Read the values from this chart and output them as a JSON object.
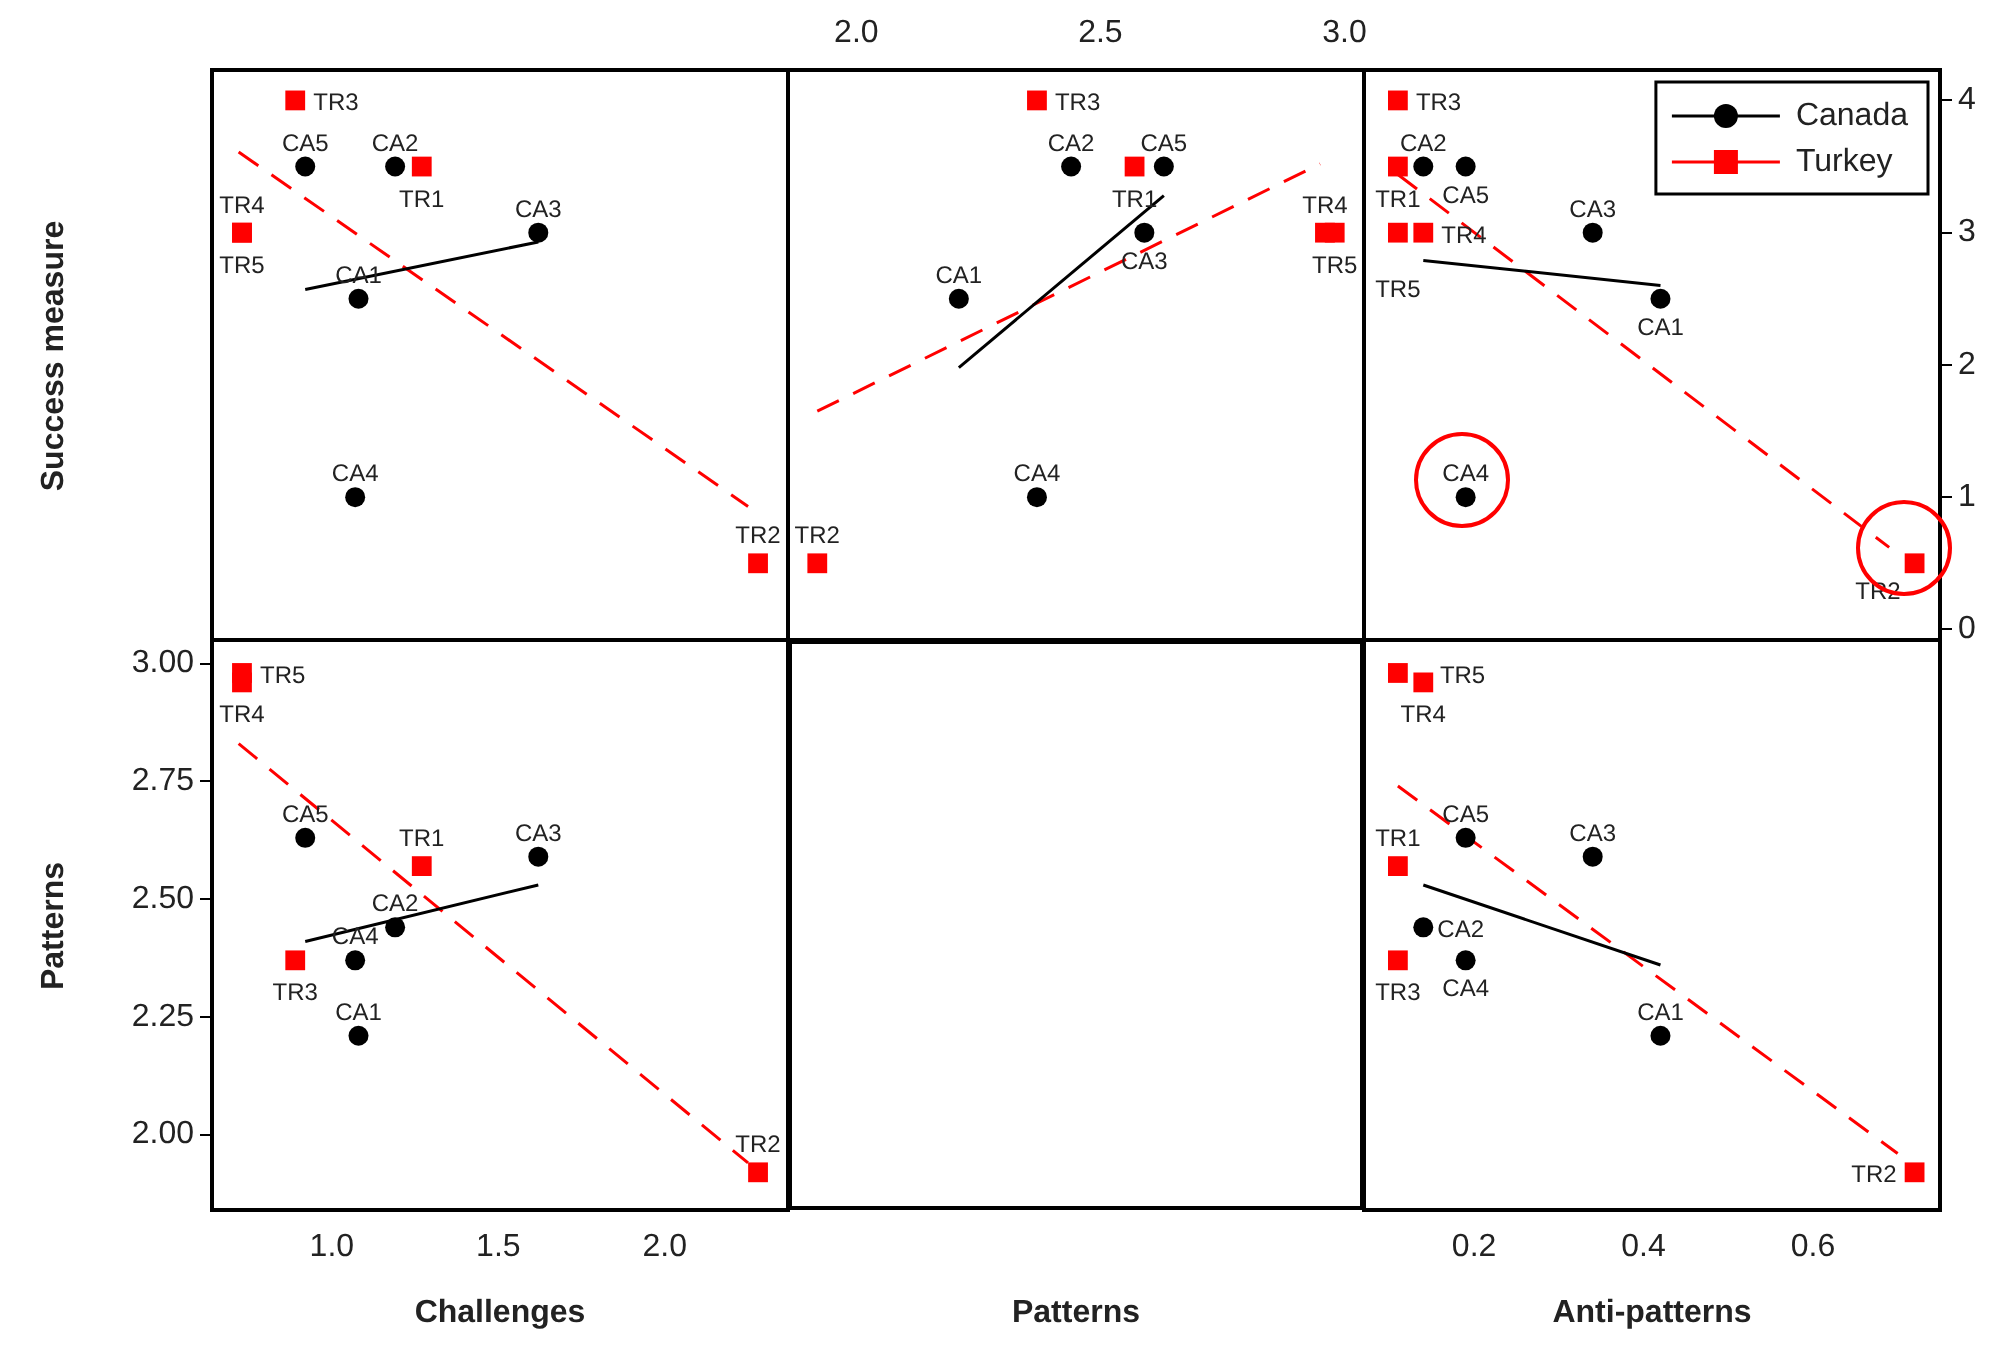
{
  "chart_data": [
    {
      "type": "scatter",
      "ylabel": "Success measure",
      "tick_labels": false,
      "xlim": [
        0.64,
        2.37
      ],
      "y2lim": [
        -0.08,
        4.23
      ],
      "series": [
        {
          "color": "#000000",
          "marker": "circle",
          "axis": "y2",
          "x": [
            1.08,
            1.19,
            1.62,
            1.07,
            0.92
          ],
          "values": [
            2.5,
            3.5,
            3.0,
            1.0,
            3.5
          ],
          "value_labels": [
            "CA1",
            "CA2",
            "CA3",
            "CA4",
            "CA5"
          ]
        },
        {
          "color": "#ff0000",
          "marker": "square",
          "axis": "y2",
          "x": [
            1.27,
            2.28,
            0.89,
            0.73,
            0.73
          ],
          "values": [
            3.5,
            0.5,
            4.0,
            3.0,
            3.0
          ],
          "value_labels": [
            "TR1",
            "TR2",
            "TR3",
            "TR4",
            "TR5"
          ]
        },
        {
          "type": "line",
          "color": "#000000",
          "marker": "none",
          "line_style": "solid",
          "axis": "y2",
          "x": [
            0.92,
            1.62
          ],
          "values": [
            2.57,
            2.93
          ]
        },
        {
          "type": "line",
          "color": "#ff0000",
          "marker": "none",
          "line_style": "dashed",
          "axis": "y2",
          "x": [
            0.72,
            2.25
          ],
          "values": [
            3.61,
            0.93
          ]
        }
      ]
    },
    {
      "type": "scatter",
      "xlabel": "Patterns",
      "tick_labels": "x",
      "xlim": [
        1.86,
        3.04
      ],
      "xticks": [
        {
          "value": 2,
          "label": "2.0"
        },
        {
          "value": 2.5,
          "label": "2.5"
        },
        {
          "value": 3,
          "label": "3.0"
        }
      ],
      "y2lim": [
        -0.08,
        4.23
      ],
      "series": [
        {
          "color": "#000000",
          "marker": "circle",
          "axis": "y2",
          "x": [
            2.21,
            2.44,
            2.59,
            2.37,
            2.63
          ],
          "values": [
            2.5,
            3.5,
            3.0,
            1.0,
            3.5
          ],
          "value_labels": [
            "CA1",
            "CA2",
            "CA3",
            "CA4",
            "CA5"
          ]
        },
        {
          "color": "#ff0000",
          "marker": "square",
          "axis": "y2",
          "x": [
            2.57,
            1.92,
            2.37,
            2.96,
            2.98
          ],
          "values": [
            3.5,
            0.5,
            4.0,
            3.0,
            3.0
          ],
          "value_labels": [
            "TR1",
            "TR2",
            "TR3",
            "TR4",
            "TR5"
          ]
        },
        {
          "type": "line",
          "color": "#000000",
          "marker": "none",
          "line_style": "solid",
          "axis": "y2",
          "x": [
            2.21,
            2.63
          ],
          "values": [
            1.98,
            3.28
          ]
        },
        {
          "type": "line",
          "color": "#ff0000",
          "marker": "none",
          "line_style": "dashed",
          "axis": "y2",
          "x": [
            1.92,
            2.95
          ],
          "values": [
            1.65,
            3.52
          ]
        }
      ]
    },
    {
      "type": "scatter",
      "tick_labels": "y",
      "legend": "top right",
      "xlim": [
        0.07,
        0.75
      ],
      "y2lim": [
        -0.08,
        4.23
      ],
      "y2ticks": [
        0,
        1,
        2,
        3,
        4
      ],
      "series": [
        {
          "name": "Canada",
          "color": "#000000",
          "marker": "circle",
          "axis": "y2",
          "x": [
            0.42,
            0.14,
            0.34,
            0.19,
            0.19
          ],
          "values": [
            2.5,
            3.5,
            3.0,
            1.0,
            3.5
          ],
          "value_labels": [
            "CA1",
            "CA2",
            "CA3",
            "CA4",
            "CA5"
          ]
        },
        {
          "name": "Turkey",
          "color": "#ff0000",
          "marker": "square",
          "axis": "y2",
          "x": [
            0.11,
            0.72,
            0.11,
            0.14,
            0.11
          ],
          "values": [
            3.5,
            0.5,
            4.0,
            3.0,
            3.0
          ],
          "value_labels": [
            "TR1",
            "TR2",
            "TR3",
            "TR4",
            "TR5"
          ]
        },
        {
          "type": "line",
          "color": "#000000",
          "marker": "none",
          "line_style": "solid",
          "axis": "y2",
          "x": [
            0.14,
            0.42
          ],
          "values": [
            2.79,
            2.6
          ]
        },
        {
          "type": "line",
          "color": "#ff0000",
          "marker": "none",
          "line_style": "dashed",
          "axis": "y2",
          "x": [
            0.11,
            0.69
          ],
          "values": [
            3.44,
            0.62
          ]
        }
      ]
    },
    {
      "type": "scatter",
      "xlabel": "Challenges",
      "ylabel": "Patterns",
      "xlim": [
        0.64,
        2.37
      ],
      "xticks": [
        {
          "value": 1,
          "label": "1.0"
        },
        {
          "value": 1.5,
          "label": "1.5"
        },
        {
          "value": 2,
          "label": "2.0"
        }
      ],
      "ylim": [
        1.84,
        3.05
      ],
      "yticks": [
        {
          "value": 2,
          "label": "2.00"
        },
        {
          "value": 2.25,
          "label": "2.25"
        },
        {
          "value": 2.5,
          "label": "2.50"
        },
        {
          "value": 2.75,
          "label": "2.75"
        },
        {
          "value": 3,
          "label": "3.00"
        }
      ],
      "series": [
        {
          "color": "#000000",
          "marker": "circle",
          "x": [
            1.08,
            1.19,
            1.62,
            1.07,
            0.92
          ],
          "values": [
            2.21,
            2.44,
            2.59,
            2.37,
            2.63
          ],
          "value_labels": [
            "CA1",
            "CA2",
            "CA3",
            "CA4",
            "CA5"
          ]
        },
        {
          "color": "#ff0000",
          "marker": "square",
          "x": [
            1.27,
            2.28,
            0.89,
            0.73,
            0.73
          ],
          "values": [
            2.57,
            1.92,
            2.37,
            2.96,
            2.98
          ],
          "value_labels": [
            "TR1",
            "TR2",
            "TR3",
            "TR4",
            "TR5"
          ]
        },
        {
          "type": "line",
          "color": "#000000",
          "marker": "none",
          "line_style": "solid",
          "x": [
            0.92,
            1.62
          ],
          "values": [
            2.41,
            2.53
          ]
        },
        {
          "type": "line",
          "color": "#ff0000",
          "marker": "none",
          "line_style": "dashed",
          "x": [
            0.72,
            2.25
          ],
          "values": [
            2.83,
            1.94
          ]
        }
      ]
    },
    {
      "type": "scatter",
      "xlabel": "Anti-patterns",
      "tick_labels": "x",
      "xlim": [
        0.07,
        0.75
      ],
      "xticks": [
        0.2,
        0.4,
        0.6
      ],
      "ylim": [
        1.84,
        3.05
      ],
      "series": [
        {
          "color": "#000000",
          "marker": "circle",
          "x": [
            0.42,
            0.14,
            0.34,
            0.19,
            0.19
          ],
          "values": [
            2.21,
            2.44,
            2.59,
            2.37,
            2.63
          ],
          "value_labels": [
            "CA1",
            "CA2",
            "CA3",
            "CA4",
            "CA5"
          ]
        },
        {
          "color": "#ff0000",
          "marker": "square",
          "x": [
            0.11,
            0.72,
            0.11,
            0.14,
            0.11
          ],
          "values": [
            2.57,
            1.92,
            2.37,
            2.96,
            2.98
          ],
          "value_labels": [
            "TR1",
            "TR2",
            "TR3",
            "TR4",
            "TR5"
          ]
        },
        {
          "type": "line",
          "color": "#000000",
          "marker": "none",
          "line_style": "solid",
          "x": [
            0.14,
            0.42
          ],
          "values": [
            2.53,
            2.36
          ]
        },
        {
          "type": "line",
          "color": "#ff0000",
          "marker": "none",
          "line_style": "dashed",
          "x": [
            0.11,
            0.7
          ],
          "values": [
            2.74,
            1.96
          ]
        }
      ]
    }
  ]
}
